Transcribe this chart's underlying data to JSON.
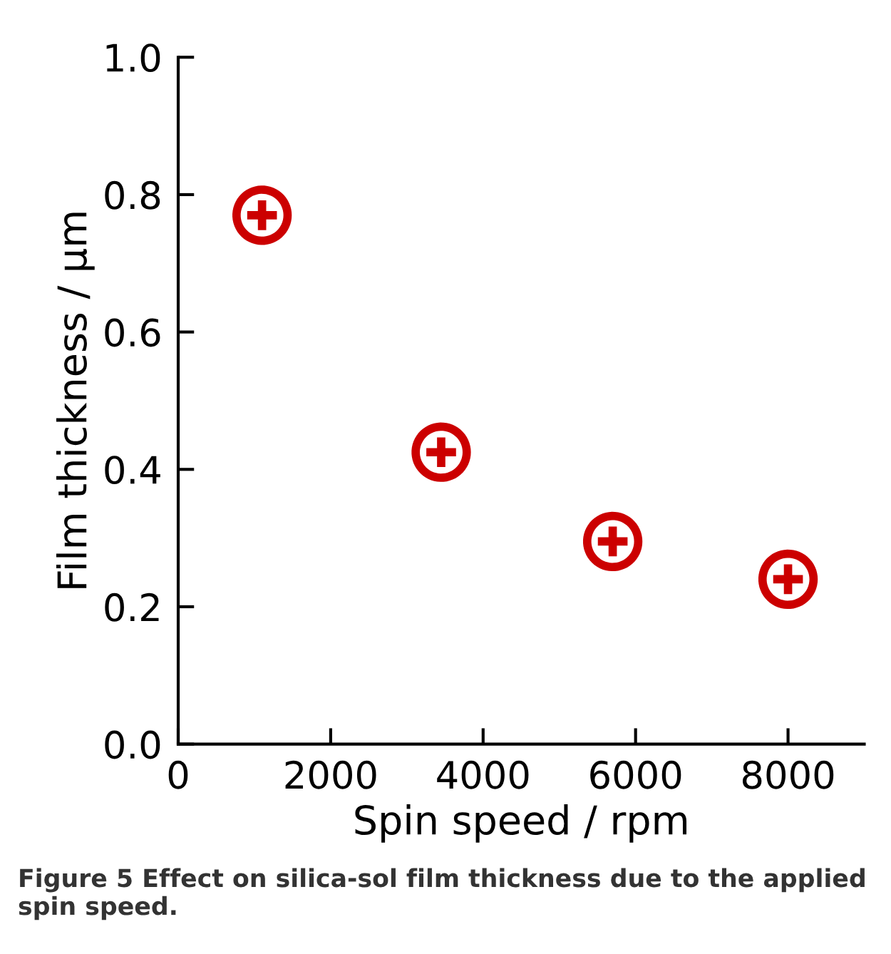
{
  "chart_data": {
    "type": "scatter",
    "xlabel": "Spin speed / rpm",
    "ylabel": "Film thickness / µm",
    "x": [
      1100,
      3450,
      5700,
      8000
    ],
    "values": [
      0.77,
      0.425,
      0.295,
      0.24
    ],
    "color": "#cc0000",
    "marker": "circle",
    "xlim": [
      0,
      9000
    ],
    "xticks": [
      0,
      2000,
      4000,
      6000,
      8000
    ],
    "ylim": [
      0,
      1.0
    ],
    "yticks": [
      {
        "value": 0,
        "label": "0.0"
      },
      0.2,
      0.4,
      0.6,
      0.8,
      {
        "value": 1.0,
        "label": "1.0"
      }
    ],
    "grid": false,
    "legend": false,
    "annotations": [
      "Figure 5 Effect on silica-sol film thickness due to the applied spin speed."
    ]
  }
}
